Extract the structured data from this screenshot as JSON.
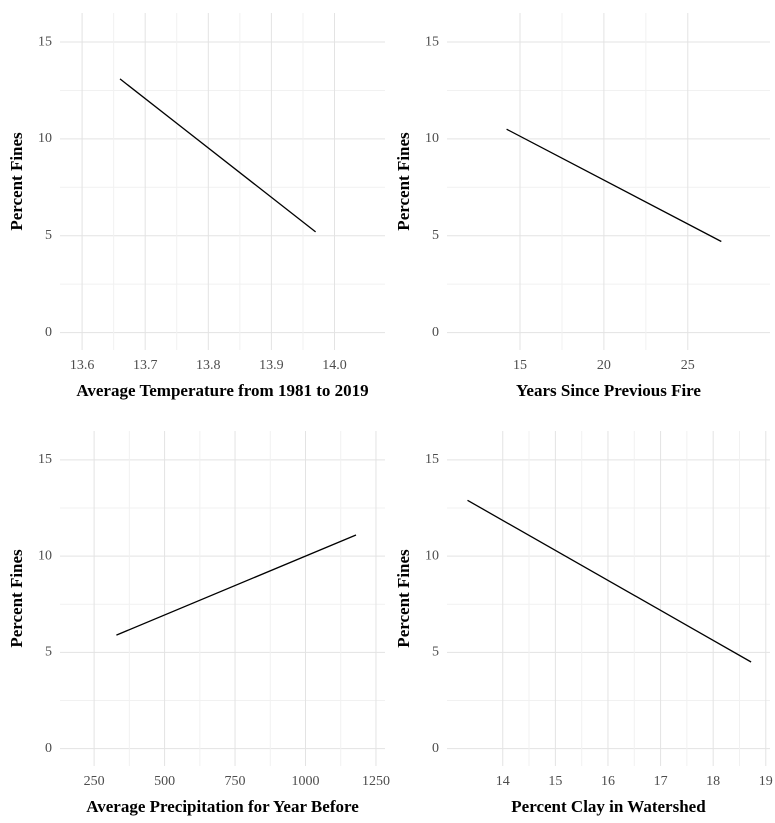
{
  "chart_data": [
    {
      "type": "line",
      "x_label": "Average Temperature from 1981 to 2019",
      "y_label": "Percent Fines",
      "x": [
        13.66,
        13.97
      ],
      "values": [
        13.1,
        5.2
      ],
      "color": "#000000",
      "xlim": [
        13.565,
        14.08
      ],
      "xticks": [
        13.6,
        13.7,
        13.8,
        13.9,
        {
          "value": 14,
          "label": "14.0"
        }
      ],
      "ylim": [
        -0.9,
        16.5
      ],
      "yticks": [
        0,
        5,
        10,
        15
      ],
      "grid": true
    },
    {
      "type": "line",
      "x_label": "Years Since Previous Fire",
      "y_label": "Percent Fines",
      "x": [
        14.2,
        27.0
      ],
      "values": [
        10.5,
        4.7
      ],
      "color": "#000000",
      "xlim": [
        10.65,
        29.9
      ],
      "xticks": [
        15,
        20,
        25
      ],
      "ylim": [
        -0.9,
        16.5
      ],
      "yticks": [
        0,
        5,
        10,
        15
      ],
      "grid": true
    },
    {
      "type": "line",
      "x_label": "Average Precipitation for Year Before",
      "y_label": "Percent Fines",
      "x": [
        329,
        1179
      ],
      "values": [
        5.9,
        11.1
      ],
      "color": "#000000",
      "xlim": [
        129,
        1282
      ],
      "xticks": [
        250,
        500,
        750,
        1000,
        1250
      ],
      "ylim": [
        -0.9,
        16.5
      ],
      "yticks": [
        0,
        5,
        10,
        15
      ],
      "grid": true
    },
    {
      "type": "line",
      "x_label": "Percent Clay in Watershed",
      "y_label": "Percent Fines",
      "x": [
        13.33,
        18.72
      ],
      "values": [
        12.9,
        4.5
      ],
      "color": "#000000",
      "xlim": [
        12.94,
        19.08
      ],
      "xticks": [
        14,
        15,
        16,
        17,
        18,
        19
      ],
      "ylim": [
        -0.9,
        16.5
      ],
      "yticks": [
        0,
        5,
        10,
        15
      ],
      "grid": true
    }
  ]
}
